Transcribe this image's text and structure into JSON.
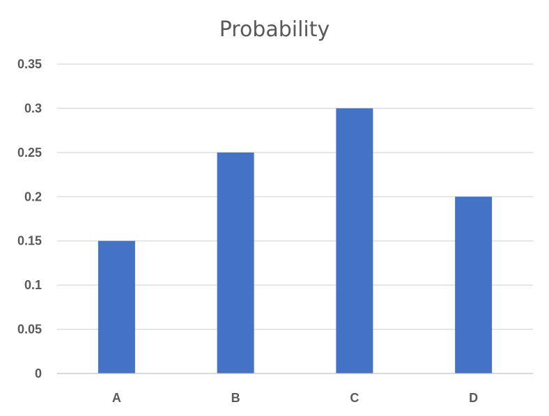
{
  "chart_data": {
    "type": "bar",
    "title": "Probability",
    "categories": [
      "A",
      "B",
      "C",
      "D"
    ],
    "values": [
      0.15,
      0.25,
      0.3,
      0.2
    ],
    "ylim": [
      0,
      0.35
    ],
    "yticks": [
      0,
      0.05,
      0.1,
      0.15,
      0.2,
      0.25,
      0.3,
      0.35
    ],
    "ytick_labels": [
      "0",
      "0.05",
      "0.1",
      "0.15",
      "0.2",
      "0.25",
      "0.3",
      "0.35"
    ],
    "xlabel": "",
    "ylabel": "",
    "grid": true,
    "legend": "none",
    "bar_color": "#4472c4"
  }
}
